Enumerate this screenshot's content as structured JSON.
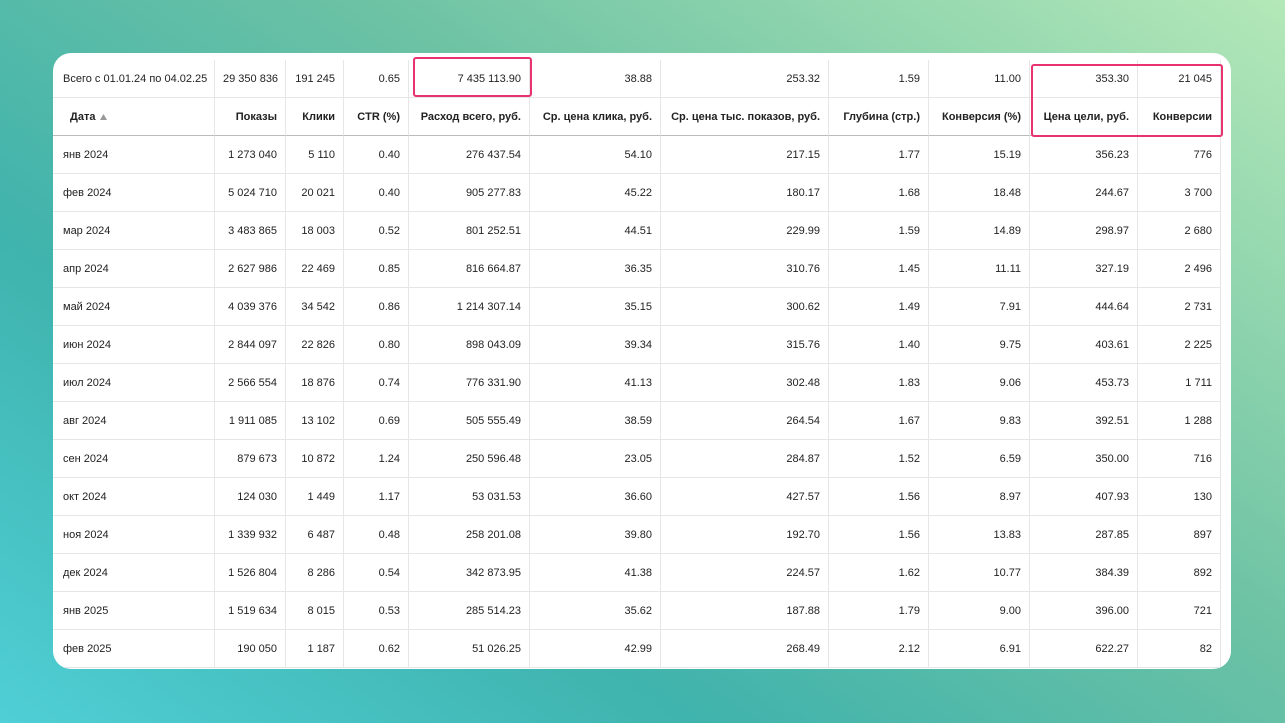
{
  "summary": {
    "label": "Всего с 01.01.24 по 04.02.25",
    "values": [
      "29 350 836",
      "191 245",
      "0.65",
      "7 435 113.90",
      "38.88",
      "253.32",
      "1.59",
      "11.00",
      "353.30",
      "21 045"
    ]
  },
  "header": [
    "Дата",
    "Показы",
    "Клики",
    "CTR (%)",
    "Расход всего, руб.",
    "Ср. цена клика, руб.",
    "Ср. цена тыс. показов, руб.",
    "Глубина (стр.)",
    "Конверсия (%)",
    "Цена цели, руб.",
    "Конверсии"
  ],
  "table": {
    "rows": [
      [
        "янв 2024",
        "1 273 040",
        "5 110",
        "0.40",
        "276 437.54",
        "54.10",
        "217.15",
        "1.77",
        "15.19",
        "356.23",
        "776"
      ],
      [
        "фев 2024",
        "5 024 710",
        "20 021",
        "0.40",
        "905 277.83",
        "45.22",
        "180.17",
        "1.68",
        "18.48",
        "244.67",
        "3 700"
      ],
      [
        "мар 2024",
        "3 483 865",
        "18 003",
        "0.52",
        "801 252.51",
        "44.51",
        "229.99",
        "1.59",
        "14.89",
        "298.97",
        "2 680"
      ],
      [
        "апр 2024",
        "2 627 986",
        "22 469",
        "0.85",
        "816 664.87",
        "36.35",
        "310.76",
        "1.45",
        "11.11",
        "327.19",
        "2 496"
      ],
      [
        "май 2024",
        "4 039 376",
        "34 542",
        "0.86",
        "1 214 307.14",
        "35.15",
        "300.62",
        "1.49",
        "7.91",
        "444.64",
        "2 731"
      ],
      [
        "июн 2024",
        "2 844 097",
        "22 826",
        "0.80",
        "898 043.09",
        "39.34",
        "315.76",
        "1.40",
        "9.75",
        "403.61",
        "2 225"
      ],
      [
        "июл 2024",
        "2 566 554",
        "18 876",
        "0.74",
        "776 331.90",
        "41.13",
        "302.48",
        "1.83",
        "9.06",
        "453.73",
        "1 711"
      ],
      [
        "авг 2024",
        "1 911 085",
        "13 102",
        "0.69",
        "505 555.49",
        "38.59",
        "264.54",
        "1.67",
        "9.83",
        "392.51",
        "1 288"
      ],
      [
        "сен 2024",
        "879 673",
        "10 872",
        "1.24",
        "250 596.48",
        "23.05",
        "284.87",
        "1.52",
        "6.59",
        "350.00",
        "716"
      ],
      [
        "окт 2024",
        "124 030",
        "1 449",
        "1.17",
        "53 031.53",
        "36.60",
        "427.57",
        "1.56",
        "8.97",
        "407.93",
        "130"
      ],
      [
        "ноя 2024",
        "1 339 932",
        "6 487",
        "0.48",
        "258 201.08",
        "39.80",
        "192.70",
        "1.56",
        "13.83",
        "287.85",
        "897"
      ],
      [
        "дек 2024",
        "1 526 804",
        "8 286",
        "0.54",
        "342 873.95",
        "41.38",
        "224.57",
        "1.62",
        "10.77",
        "384.39",
        "892"
      ],
      [
        "янв 2025",
        "1 519 634",
        "8 015",
        "0.53",
        "285 514.23",
        "35.62",
        "187.88",
        "1.79",
        "9.00",
        "396.00",
        "721"
      ],
      [
        "фев 2025",
        "190 050",
        "1 187",
        "0.62",
        "51 026.25",
        "42.99",
        "268.49",
        "2.12",
        "6.91",
        "622.27",
        "82"
      ]
    ]
  }
}
